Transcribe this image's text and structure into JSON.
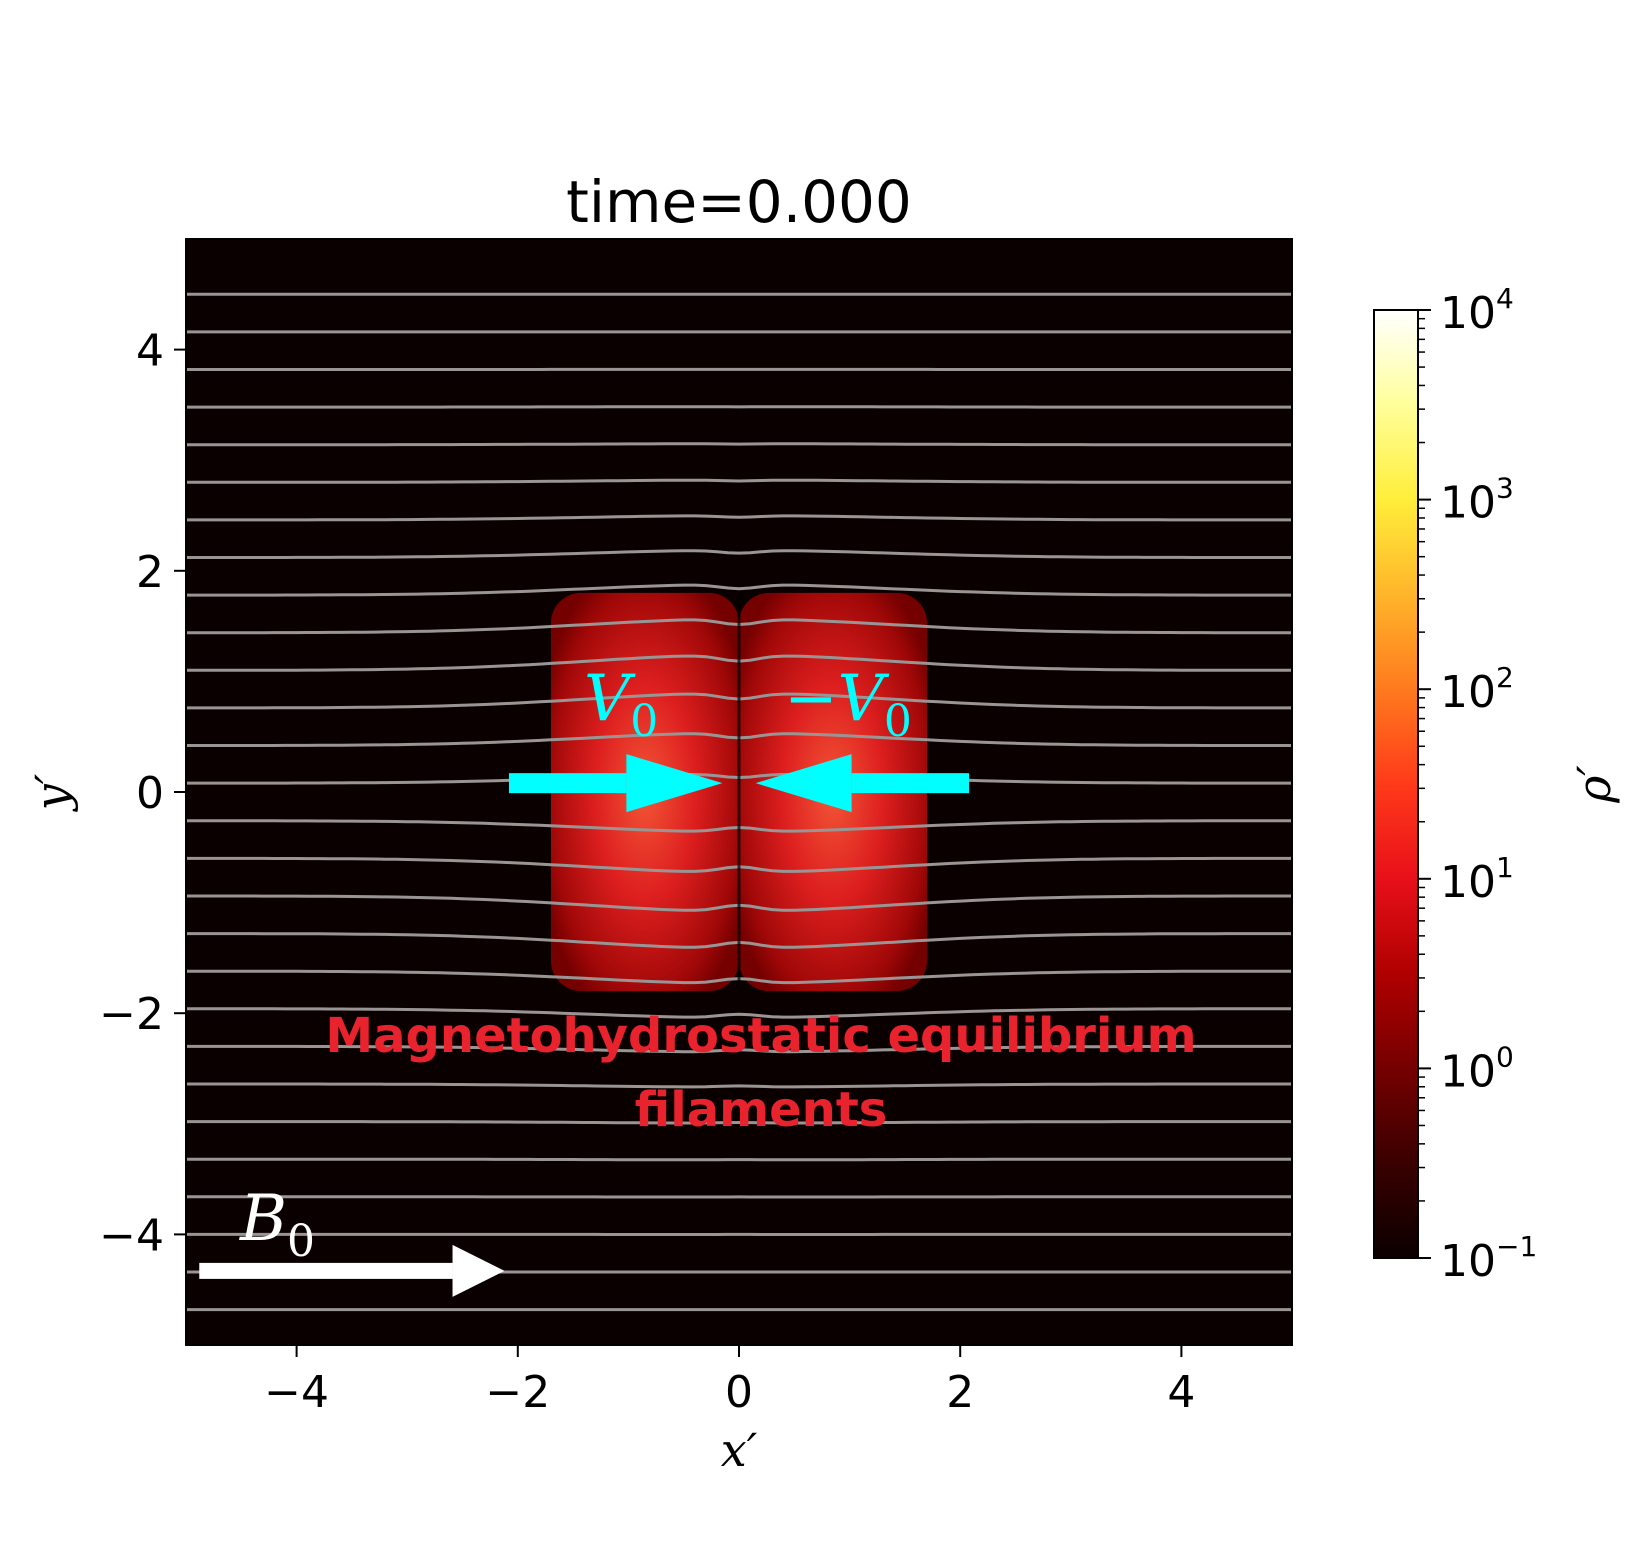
{
  "chart_data": {
    "type": "heatmap",
    "title": "time=0.000",
    "xlabel": "x′",
    "ylabel": "y′",
    "xlim": [
      -5,
      5
    ],
    "ylim": [
      -5,
      5
    ],
    "x_ticks": [
      -4,
      -2,
      0,
      2,
      4
    ],
    "x_tick_labels": [
      "−4",
      "−2",
      "0",
      "2",
      "4"
    ],
    "y_ticks": [
      -4,
      -2,
      0,
      2,
      4
    ],
    "y_tick_labels": [
      "−4",
      "−2",
      "0",
      "2",
      "4"
    ],
    "colormap": "hot",
    "background_color": "#0b0000",
    "grid": false,
    "colorbar": {
      "label": "ρ′",
      "scale": "log",
      "range": [
        0.1,
        10000
      ],
      "ticks": [
        {
          "value": 0.1,
          "base": "10",
          "exp": "−1"
        },
        {
          "value": 1,
          "base": "10",
          "exp": "0"
        },
        {
          "value": 10,
          "base": "10",
          "exp": "1"
        },
        {
          "value": 100,
          "base": "10",
          "exp": "2"
        },
        {
          "value": 1000,
          "base": "10",
          "exp": "3"
        },
        {
          "value": 10000,
          "base": "10",
          "exp": "4"
        }
      ]
    },
    "filaments": [
      {
        "x_range": [
          -1.7,
          0
        ],
        "y_range": [
          -1.8,
          1.8
        ],
        "peak_density": 30
      },
      {
        "x_range": [
          0,
          1.7
        ],
        "y_range": [
          -1.8,
          1.8
        ],
        "peak_density": 30
      }
    ],
    "field_line_color": "#9a9595",
    "field_line_spacing": 0.34,
    "annotations": {
      "v_left": {
        "label": "V",
        "sub": "0",
        "direction": "right",
        "color": "#00ffff"
      },
      "v_right": {
        "label": "−V",
        "sub": "0",
        "direction": "left",
        "color": "#00ffff"
      },
      "b_field": {
        "label": "B",
        "sub": "0",
        "direction": "right",
        "color": "#ffffff"
      },
      "description": [
        "Magnetohydrostatic equilibrium",
        "filaments"
      ],
      "description_color": "#e8232e"
    }
  }
}
